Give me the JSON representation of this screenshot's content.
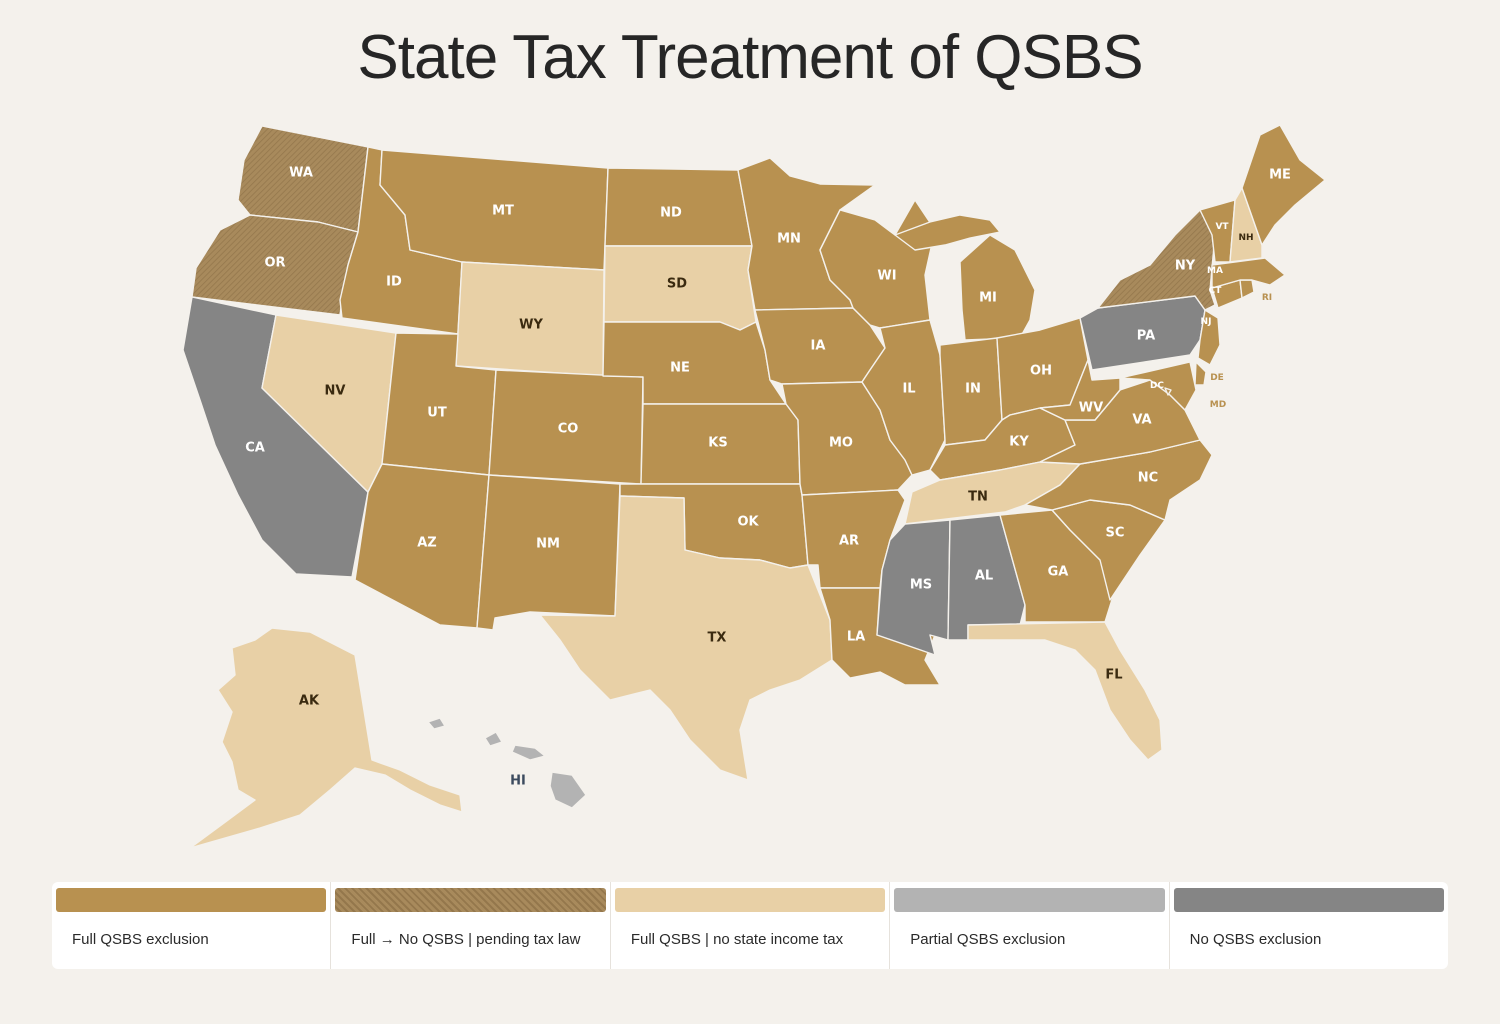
{
  "title": "State Tax Treatment of QSBS",
  "colors": {
    "full": "#b89150",
    "pending": "#a88a5c",
    "no_income_tax": "#e8d0a6",
    "partial": "#b3b3b3",
    "none": "#858585"
  },
  "legend": [
    {
      "label": "Full QSBS exclusion",
      "category": "full"
    },
    {
      "label": "Full → No QSBS | pending tax law",
      "category": "pending"
    },
    {
      "label": "Full QSBS | no state income tax",
      "category": "no_income_tax"
    },
    {
      "label": "Partial QSBS exclusion",
      "category": "partial"
    },
    {
      "label": "No QSBS exclusion",
      "category": "none"
    }
  ],
  "states": [
    {
      "code": "WA",
      "category": "pending"
    },
    {
      "code": "OR",
      "category": "pending"
    },
    {
      "code": "CA",
      "category": "none"
    },
    {
      "code": "NV",
      "category": "no_income_tax"
    },
    {
      "code": "ID",
      "category": "full"
    },
    {
      "code": "MT",
      "category": "full"
    },
    {
      "code": "WY",
      "category": "no_income_tax"
    },
    {
      "code": "UT",
      "category": "full"
    },
    {
      "code": "AZ",
      "category": "full"
    },
    {
      "code": "CO",
      "category": "full"
    },
    {
      "code": "NM",
      "category": "full"
    },
    {
      "code": "ND",
      "category": "full"
    },
    {
      "code": "SD",
      "category": "no_income_tax"
    },
    {
      "code": "NE",
      "category": "full"
    },
    {
      "code": "KS",
      "category": "full"
    },
    {
      "code": "OK",
      "category": "full"
    },
    {
      "code": "TX",
      "category": "no_income_tax"
    },
    {
      "code": "MN",
      "category": "full"
    },
    {
      "code": "IA",
      "category": "full"
    },
    {
      "code": "MO",
      "category": "full"
    },
    {
      "code": "AR",
      "category": "full"
    },
    {
      "code": "LA",
      "category": "full"
    },
    {
      "code": "WI",
      "category": "full"
    },
    {
      "code": "IL",
      "category": "full"
    },
    {
      "code": "MI",
      "category": "full"
    },
    {
      "code": "IN",
      "category": "full"
    },
    {
      "code": "OH",
      "category": "full"
    },
    {
      "code": "KY",
      "category": "full"
    },
    {
      "code": "TN",
      "category": "no_income_tax"
    },
    {
      "code": "MS",
      "category": "none"
    },
    {
      "code": "AL",
      "category": "none"
    },
    {
      "code": "GA",
      "category": "full"
    },
    {
      "code": "FL",
      "category": "no_income_tax"
    },
    {
      "code": "SC",
      "category": "full"
    },
    {
      "code": "NC",
      "category": "full"
    },
    {
      "code": "VA",
      "category": "full"
    },
    {
      "code": "WV",
      "category": "full"
    },
    {
      "code": "PA",
      "category": "none"
    },
    {
      "code": "NY",
      "category": "pending"
    },
    {
      "code": "NJ",
      "category": "full"
    },
    {
      "code": "DE",
      "category": "full"
    },
    {
      "code": "MD",
      "category": "full"
    },
    {
      "code": "DC",
      "category": "full"
    },
    {
      "code": "CT",
      "category": "full"
    },
    {
      "code": "RI",
      "category": "full"
    },
    {
      "code": "MA",
      "category": "full"
    },
    {
      "code": "VT",
      "category": "full"
    },
    {
      "code": "NH",
      "category": "no_income_tax"
    },
    {
      "code": "ME",
      "category": "full"
    },
    {
      "code": "AK",
      "category": "no_income_tax"
    },
    {
      "code": "HI",
      "category": "partial"
    }
  ]
}
